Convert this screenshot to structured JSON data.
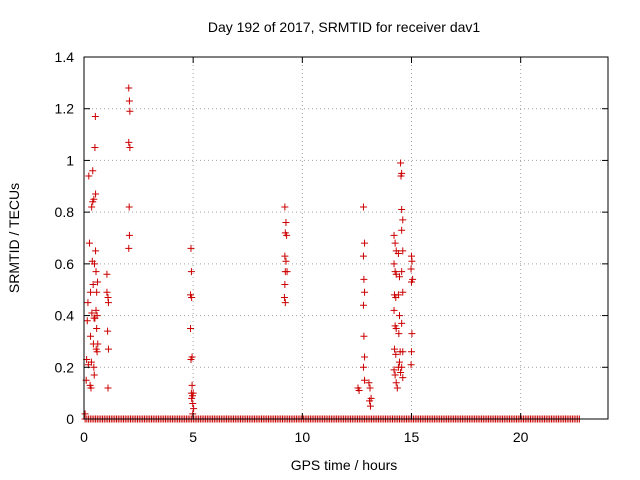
{
  "chart_data": {
    "type": "scatter",
    "title": "Day 192 of 2017, SRMTID for receiver dav1",
    "xlabel": "GPS time / hours",
    "ylabel": "SRMTID / TECUs",
    "xlim": [
      0,
      24
    ],
    "ylim": [
      0,
      1.4
    ],
    "xticks": [
      0,
      5,
      10,
      15,
      20
    ],
    "yticks": [
      0,
      0.2,
      0.4,
      0.6,
      0.8,
      1,
      1.2,
      1.4
    ],
    "ytick_labels": [
      "0",
      "0.2",
      "0.4",
      "0.6",
      "0.8",
      "1",
      "1.2",
      "1.4"
    ],
    "grid": true,
    "marker": "+",
    "color": "#cc0000",
    "baseline": {
      "y": 0,
      "x_start": 0.05,
      "x_end": 22.7,
      "step": 0.08
    },
    "series": [
      {
        "name": "dav1",
        "points": [
          [
            0.05,
            0.02
          ],
          [
            0.1,
            0.15
          ],
          [
            0.12,
            0.23
          ],
          [
            0.15,
            0.38
          ],
          [
            0.18,
            0.45
          ],
          [
            0.2,
            0.21
          ],
          [
            0.22,
            0.94
          ],
          [
            0.25,
            0.68
          ],
          [
            0.28,
            0.13
          ],
          [
            0.3,
            0.49
          ],
          [
            0.3,
            0.32
          ],
          [
            0.32,
            0.12
          ],
          [
            0.34,
            0.22
          ],
          [
            0.35,
            0.82
          ],
          [
            0.36,
            0.41
          ],
          [
            0.38,
            0.61
          ],
          [
            0.4,
            0.96
          ],
          [
            0.4,
            0.84
          ],
          [
            0.42,
            0.52
          ],
          [
            0.43,
            0.29
          ],
          [
            0.45,
            0.85
          ],
          [
            0.45,
            0.2
          ],
          [
            0.46,
            0.39
          ],
          [
            0.47,
            0.17
          ],
          [
            0.48,
            0.6
          ],
          [
            0.5,
            1.05
          ],
          [
            0.5,
            0.39
          ],
          [
            0.52,
            1.17
          ],
          [
            0.53,
            0.87
          ],
          [
            0.53,
            0.65
          ],
          [
            0.55,
            0.57
          ],
          [
            0.55,
            0.42
          ],
          [
            0.56,
            0.27
          ],
          [
            0.58,
            0.49
          ],
          [
            0.58,
            0.35
          ],
          [
            0.6,
            0.4
          ],
          [
            0.6,
            0.26
          ],
          [
            0.62,
            0.53
          ],
          [
            0.63,
            0.29
          ],
          [
            1.05,
            0.56
          ],
          [
            1.05,
            0.49
          ],
          [
            1.08,
            0.34
          ],
          [
            1.1,
            0.47
          ],
          [
            1.12,
            0.45
          ],
          [
            1.12,
            0.27
          ],
          [
            1.1,
            0.12
          ],
          [
            2.05,
            1.28
          ],
          [
            2.08,
            1.23
          ],
          [
            2.1,
            1.19
          ],
          [
            2.05,
            1.07
          ],
          [
            2.1,
            1.05
          ],
          [
            2.07,
            0.82
          ],
          [
            2.08,
            0.71
          ],
          [
            2.05,
            0.66
          ],
          [
            4.9,
            0.66
          ],
          [
            4.92,
            0.57
          ],
          [
            4.88,
            0.48
          ],
          [
            4.93,
            0.47
          ],
          [
            4.88,
            0.35
          ],
          [
            4.95,
            0.24
          ],
          [
            4.9,
            0.23
          ],
          [
            4.95,
            0.13
          ],
          [
            4.92,
            0.1
          ],
          [
            4.97,
            0.09
          ],
          [
            4.93,
            0.08
          ],
          [
            5.0,
            0.1
          ],
          [
            4.98,
            0.06
          ],
          [
            5.02,
            0.04
          ],
          [
            4.98,
            0.02
          ],
          [
            9.2,
            0.82
          ],
          [
            9.25,
            0.76
          ],
          [
            9.22,
            0.72
          ],
          [
            9.28,
            0.71
          ],
          [
            9.2,
            0.63
          ],
          [
            9.25,
            0.61
          ],
          [
            9.22,
            0.57
          ],
          [
            9.3,
            0.57
          ],
          [
            9.2,
            0.52
          ],
          [
            9.18,
            0.47
          ],
          [
            9.22,
            0.45
          ],
          [
            12.55,
            0.12
          ],
          [
            12.6,
            0.11
          ],
          [
            12.8,
            0.82
          ],
          [
            12.85,
            0.68
          ],
          [
            12.8,
            0.63
          ],
          [
            12.82,
            0.54
          ],
          [
            12.85,
            0.49
          ],
          [
            12.8,
            0.44
          ],
          [
            12.82,
            0.32
          ],
          [
            12.85,
            0.24
          ],
          [
            12.8,
            0.2
          ],
          [
            12.85,
            0.15
          ],
          [
            13.05,
            0.14
          ],
          [
            13.1,
            0.12
          ],
          [
            13.15,
            0.08
          ],
          [
            13.08,
            0.07
          ],
          [
            13.12,
            0.05
          ],
          [
            14.2,
            0.71
          ],
          [
            14.25,
            0.68
          ],
          [
            14.3,
            0.65
          ],
          [
            14.2,
            0.6
          ],
          [
            14.25,
            0.57
          ],
          [
            14.3,
            0.56
          ],
          [
            14.22,
            0.48
          ],
          [
            14.28,
            0.47
          ],
          [
            14.2,
            0.42
          ],
          [
            14.25,
            0.36
          ],
          [
            14.3,
            0.35
          ],
          [
            14.22,
            0.27
          ],
          [
            14.28,
            0.25
          ],
          [
            14.2,
            0.19
          ],
          [
            14.25,
            0.17
          ],
          [
            14.3,
            0.14
          ],
          [
            14.35,
            0.12
          ],
          [
            14.4,
            0.64
          ],
          [
            14.45,
            0.55
          ],
          [
            14.4,
            0.48
          ],
          [
            14.45,
            0.4
          ],
          [
            14.42,
            0.33
          ],
          [
            14.48,
            0.26
          ],
          [
            14.45,
            0.22
          ],
          [
            14.4,
            0.2
          ],
          [
            14.5,
            0.18
          ],
          [
            14.5,
            0.99
          ],
          [
            14.55,
            0.95
          ],
          [
            14.52,
            0.94
          ],
          [
            14.55,
            0.81
          ],
          [
            14.6,
            0.77
          ],
          [
            14.55,
            0.73
          ],
          [
            14.6,
            0.65
          ],
          [
            14.55,
            0.57
          ],
          [
            14.6,
            0.49
          ],
          [
            14.55,
            0.37
          ],
          [
            14.6,
            0.26
          ],
          [
            14.55,
            0.2
          ],
          [
            14.6,
            0.16
          ],
          [
            15.0,
            0.63
          ],
          [
            15.02,
            0.61
          ],
          [
            14.98,
            0.58
          ],
          [
            15.05,
            0.54
          ],
          [
            15.0,
            0.53
          ],
          [
            15.02,
            0.33
          ],
          [
            15.0,
            0.26
          ],
          [
            14.98,
            0.21
          ]
        ]
      }
    ]
  }
}
